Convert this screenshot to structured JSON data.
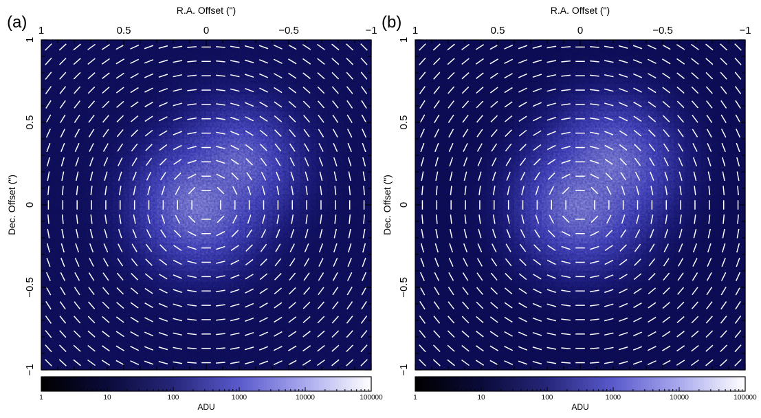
{
  "chart_data": [
    {
      "type": "heatmap",
      "panel_label": "(a)",
      "title": "",
      "xlabel": "R.A. Offset (\")",
      "ylabel": "Dec. Offset (\")",
      "xlim": [
        1,
        -1
      ],
      "ylim": [
        -1,
        1
      ],
      "x_ticks": [
        1,
        0.5,
        0,
        -0.5,
        -1
      ],
      "x_tick_labels": [
        "1",
        "0.5",
        "0",
        "−0.5",
        "−1"
      ],
      "y_ticks": [
        -1,
        -0.5,
        0,
        0.5,
        1
      ],
      "y_tick_labels": [
        "−1",
        "−0.5",
        "0",
        "0.5",
        "1"
      ],
      "colorbar": {
        "label": "ADU",
        "scale": "log",
        "range": [
          1,
          100000
        ],
        "ticks": [
          1,
          10,
          100,
          1000,
          10000,
          100000
        ],
        "tick_labels": [
          "1",
          "10",
          "100",
          "1000",
          "10000",
          "100000"
        ]
      },
      "colormap": [
        "#000000",
        "#0b0b3a",
        "#26267a",
        "#5a5acc",
        "#a9a9ee",
        "#ffffff"
      ],
      "background_level_adu": 20,
      "sources": [
        {
          "x": -0.2,
          "y": 0.25,
          "peak_adu": 4000
        },
        {
          "x": 0.05,
          "y": 0.0,
          "peak_adu": 8000
        }
      ],
      "vector_color": "#ffffff",
      "vector_field": "centrosymmetric (azimuthal) polarization pattern"
    },
    {
      "type": "heatmap",
      "panel_label": "(b)",
      "title": "",
      "xlabel": "R.A. Offset (\")",
      "ylabel": "Dec. Offset (\")",
      "xlim": [
        1,
        -1
      ],
      "ylim": [
        -1,
        1
      ],
      "x_ticks": [
        1,
        0.5,
        0,
        -0.5,
        -1
      ],
      "x_tick_labels": [
        "1",
        "0.5",
        "0",
        "−0.5",
        "−1"
      ],
      "y_ticks": [
        -1,
        -0.5,
        0,
        0.5,
        1
      ],
      "y_tick_labels": [
        "−1",
        "−0.5",
        "0",
        "0.5",
        "1"
      ],
      "colorbar": {
        "label": "ADU",
        "scale": "log",
        "range": [
          1,
          100000
        ],
        "ticks": [
          1,
          10,
          100,
          1000,
          10000,
          100000
        ],
        "tick_labels": [
          "1",
          "10",
          "100",
          "1000",
          "10000",
          "100000"
        ]
      },
      "colormap": [
        "#000000",
        "#0b0b3a",
        "#26267a",
        "#5a5acc",
        "#a9a9ee",
        "#ffffff"
      ],
      "background_level_adu": 15,
      "sources": [
        {
          "x": -0.2,
          "y": 0.25,
          "peak_adu": 6000
        },
        {
          "x": 0.0,
          "y": 0.0,
          "peak_adu": 7000
        }
      ],
      "vector_color": "#ffffff",
      "vector_field": "centrosymmetric (azimuthal) polarization pattern"
    }
  ]
}
